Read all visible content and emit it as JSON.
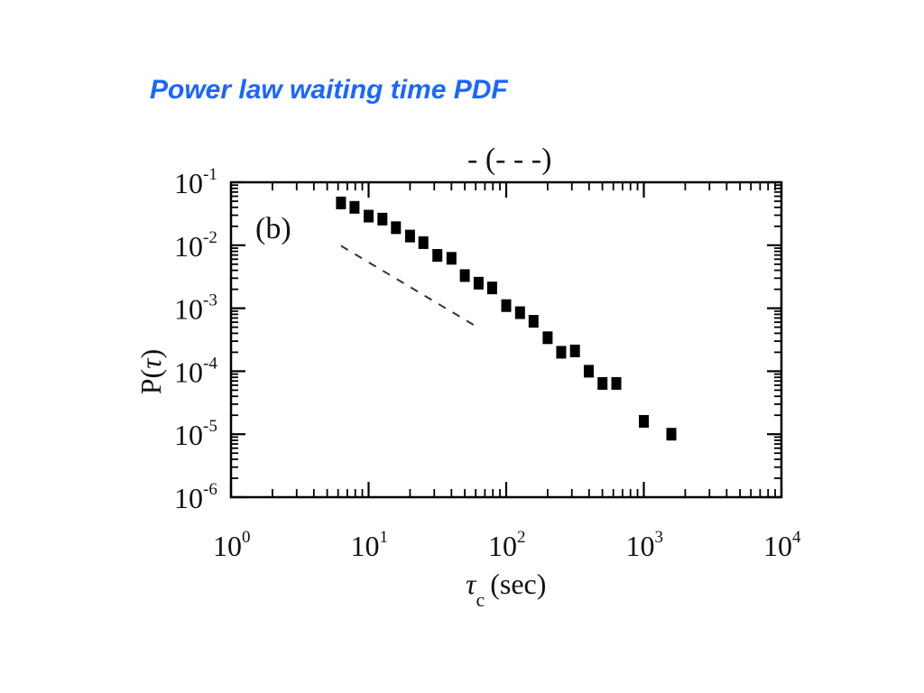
{
  "slide": {
    "title": "Power law waiting time PDF"
  },
  "chart_data": {
    "type": "scatter",
    "panel_label": "(b)",
    "xlabel_symbol": "τ",
    "xlabel_subscript": "c",
    "xlabel_unit": "(sec)",
    "ylabel_prefix": "P(",
    "ylabel_symbol": "τ",
    "ylabel_suffix": ")",
    "xscale": "log",
    "yscale": "log",
    "xlim": [
      1,
      10000
    ],
    "ylim": [
      1e-06,
      0.1
    ],
    "x_ticks": [
      {
        "base": "10",
        "exp": "0",
        "value": 1
      },
      {
        "base": "10",
        "exp": "1",
        "value": 10
      },
      {
        "base": "10",
        "exp": "2",
        "value": 100
      },
      {
        "base": "10",
        "exp": "3",
        "value": 1000
      },
      {
        "base": "10",
        "exp": "4",
        "value": 10000
      }
    ],
    "y_ticks": [
      {
        "base": "10",
        "exp": "-1",
        "value": 0.1
      },
      {
        "base": "10",
        "exp": "-2",
        "value": 0.01
      },
      {
        "base": "10",
        "exp": "-3",
        "value": 0.001
      },
      {
        "base": "10",
        "exp": "-4",
        "value": 0.0001
      },
      {
        "base": "10",
        "exp": "-5",
        "value": 1e-05
      },
      {
        "base": "10",
        "exp": "-6",
        "value": 1e-06
      }
    ],
    "points": [
      {
        "x": 6.3,
        "y": 0.047
      },
      {
        "x": 7.9,
        "y": 0.04
      },
      {
        "x": 10,
        "y": 0.029
      },
      {
        "x": 12.6,
        "y": 0.026
      },
      {
        "x": 15.8,
        "y": 0.019
      },
      {
        "x": 20,
        "y": 0.014
      },
      {
        "x": 25,
        "y": 0.011
      },
      {
        "x": 31.6,
        "y": 0.0069
      },
      {
        "x": 40,
        "y": 0.0062
      },
      {
        "x": 50,
        "y": 0.0033
      },
      {
        "x": 63,
        "y": 0.0025
      },
      {
        "x": 79,
        "y": 0.0021
      },
      {
        "x": 100,
        "y": 0.0011
      },
      {
        "x": 126,
        "y": 0.00085
      },
      {
        "x": 158,
        "y": 0.00062
      },
      {
        "x": 200,
        "y": 0.00034
      },
      {
        "x": 251,
        "y": 0.0002
      },
      {
        "x": 316,
        "y": 0.00021
      },
      {
        "x": 398,
        "y": 0.0001
      },
      {
        "x": 501,
        "y": 6.4e-05
      },
      {
        "x": 631,
        "y": 6.4e-05
      },
      {
        "x": 1000,
        "y": 1.6e-05
      },
      {
        "x": 1585,
        "y": 1e-05
      }
    ],
    "reference_line": {
      "style": "dashed",
      "x": [
        6.3,
        60
      ],
      "y": [
        0.0098,
        0.00052
      ]
    },
    "grid": false,
    "legend": "none",
    "marker": "filled-square",
    "colors": {
      "marker": "#000000",
      "title": "#1a66ff"
    }
  }
}
